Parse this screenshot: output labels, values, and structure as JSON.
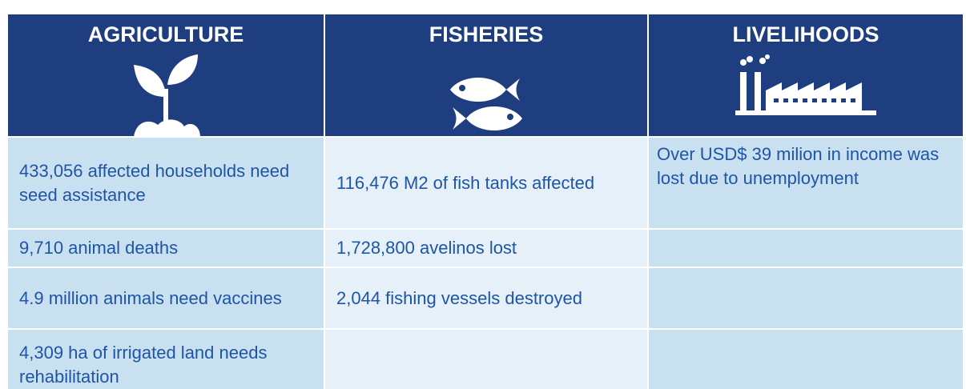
{
  "columns": [
    {
      "header": "AGRICULTURE",
      "items": [
        "433,056 affected households need seed assistance",
        "9,710 animal deaths",
        "4.9 million animals need vaccines",
        "4,309 ha of irrigated land needs rehabilitation"
      ]
    },
    {
      "header": "FISHERIES",
      "items": [
        "116,476 M2 of fish tanks affected",
        "1,728,800 avelinos lost",
        "2,044 fishing vessels destroyed"
      ]
    },
    {
      "header": "LIVELIHOODS",
      "items": [
        "Over USD$ 39 milion in income was lost due to unemployment"
      ]
    }
  ]
}
